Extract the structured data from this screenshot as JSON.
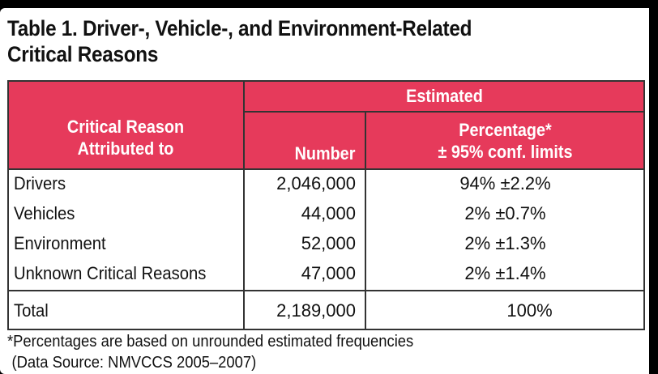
{
  "title": {
    "line1": "Table 1. Driver-, Vehicle-, and Environment-Related",
    "line2": "Critical Reasons"
  },
  "header": {
    "group": "Estimated",
    "reason_line1": "Critical Reason",
    "reason_line2": "Attributed to",
    "number": "Number",
    "pct_line1": "Percentage*",
    "pct_line2": "± 95% conf. limits"
  },
  "rows": [
    {
      "reason": "Drivers",
      "number": "2,046,000",
      "pct": "94% ±2.2%"
    },
    {
      "reason": "Vehicles",
      "number": "44,000",
      "pct": "2% ±0.7%"
    },
    {
      "reason": "Environment",
      "number": "52,000",
      "pct": "2% ±1.3%"
    },
    {
      "reason": "Unknown Critical Reasons",
      "number": "47,000",
      "pct": "2% ±1.4%"
    }
  ],
  "total": {
    "reason": "Total",
    "number": "2,189,000",
    "pct": "100%"
  },
  "footnote": {
    "line1": "*Percentages are based on unrounded estimated frequencies",
    "line2": "(Data Source: NMVCCS 2005–2007)"
  },
  "colors": {
    "header_bg": "#e63a5b",
    "border": "#333333",
    "page_bg": "#000000"
  }
}
